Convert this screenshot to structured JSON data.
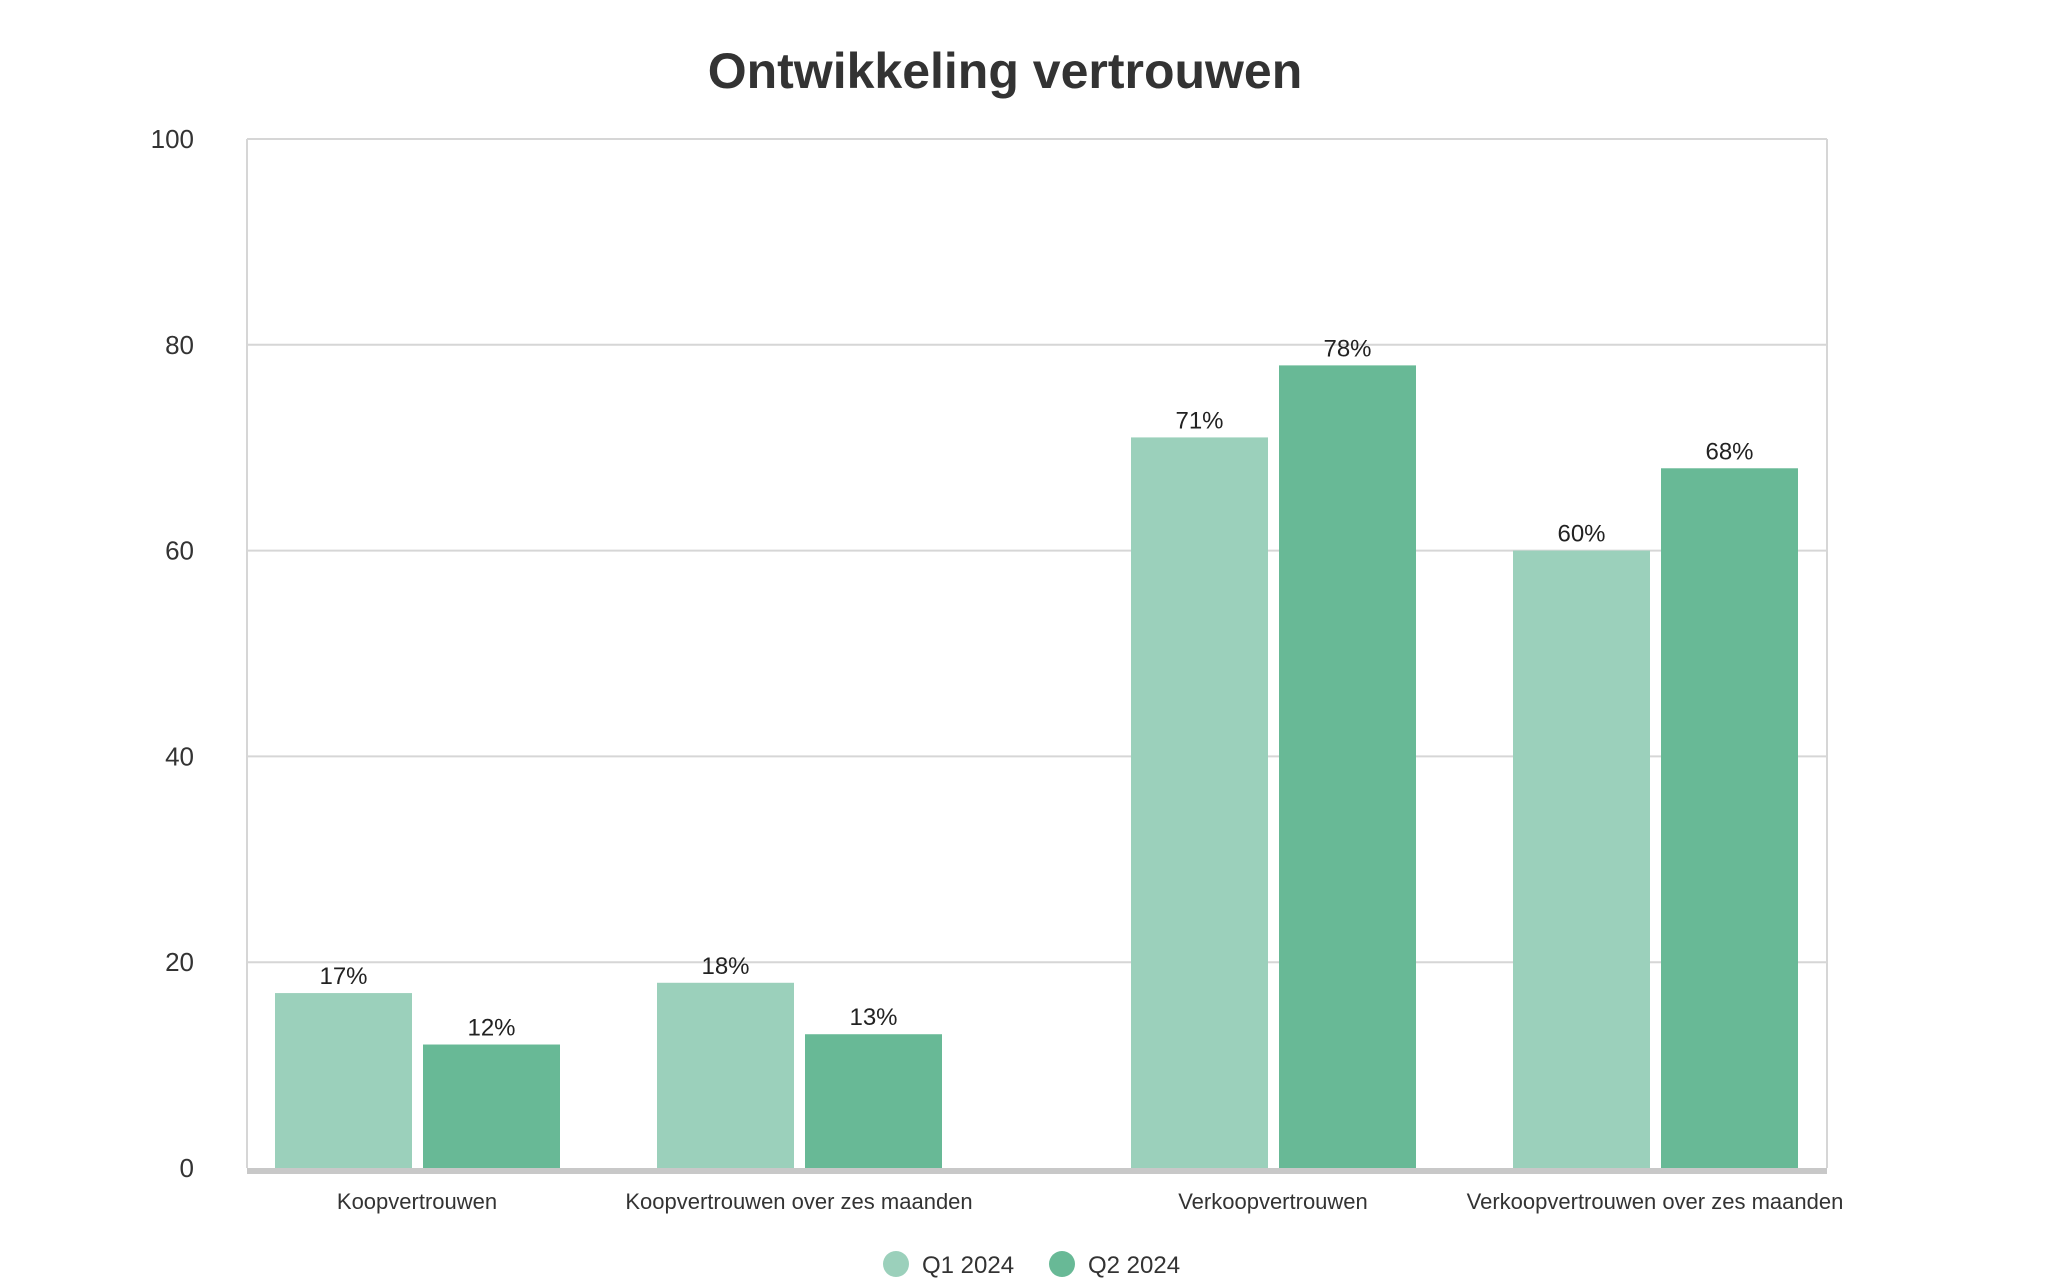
{
  "chart_data": {
    "type": "bar",
    "title": "Ontwikkeling vertrouwen",
    "xlabel": "",
    "ylabel": "",
    "categories": [
      "Koopvertrouwen",
      "Koopvertrouwen over zes maanden",
      "Verkoopvertrouwen",
      "Verkoopvertrouwen over zes maanden"
    ],
    "series": [
      {
        "name": "Q1 2024",
        "color": "#9bd0bb",
        "values": [
          17,
          18,
          71,
          60
        ],
        "labels": [
          "17%",
          "18%",
          "71%",
          "60%"
        ]
      },
      {
        "name": "Q2 2024",
        "color": "#68b996",
        "values": [
          12,
          13,
          78,
          68
        ],
        "labels": [
          "12%",
          "13%",
          "78%",
          "68%"
        ]
      }
    ],
    "ylim": [
      0,
      100
    ],
    "yticks": [
      0,
      20,
      40,
      60,
      80,
      100
    ],
    "grid": true,
    "legend_position": "bottom-center"
  }
}
